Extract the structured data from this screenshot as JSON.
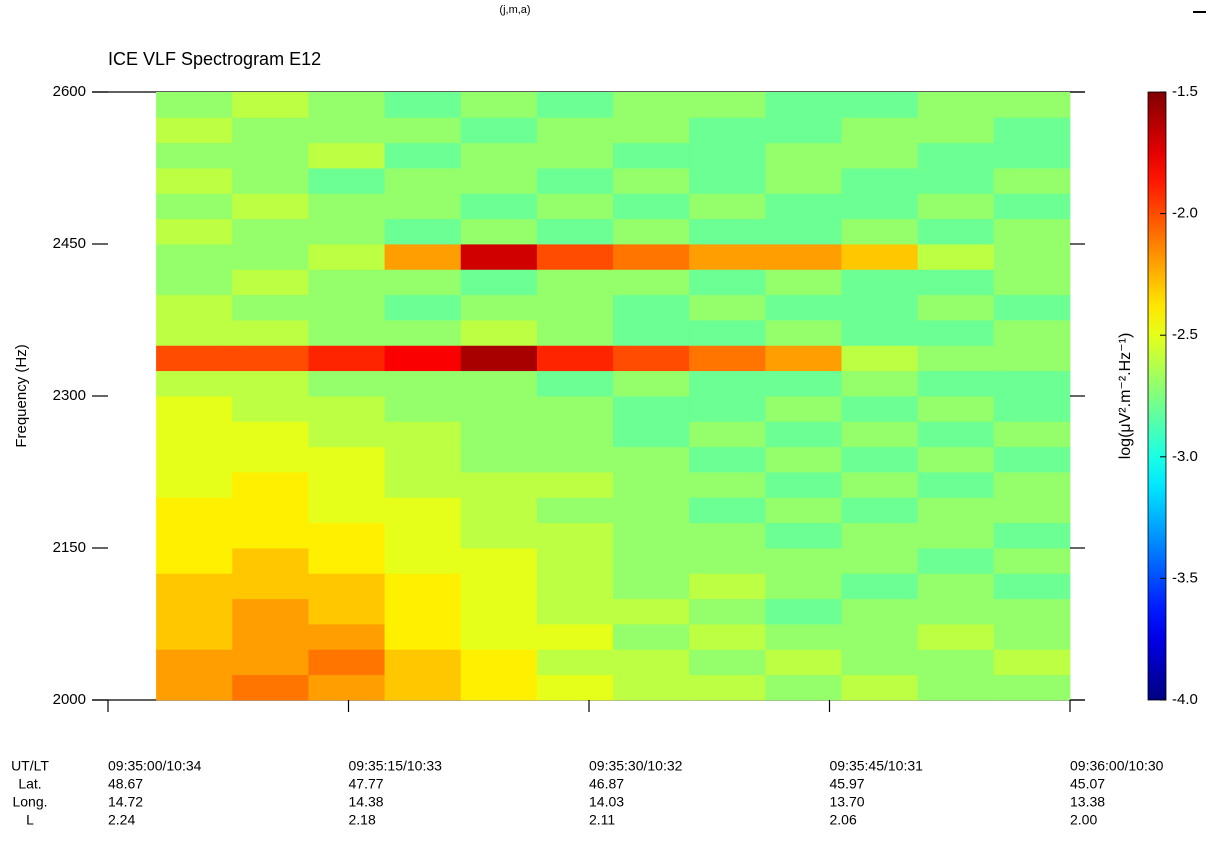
{
  "top_note": "(j,m,a)",
  "chart_data": {
    "type": "spectrogram",
    "title": "ICE VLF Spectrogram E12",
    "y_label": "Frequency (Hz)",
    "colorbar_label": "log(μV².m⁻².Hz⁻¹)",
    "xlim": [
      0,
      60
    ],
    "xticks": [
      0,
      15,
      30,
      45,
      60
    ],
    "ylim": [
      2000,
      2600
    ],
    "yticks": [
      2000,
      2150,
      2300,
      2450,
      2600
    ],
    "zlim": [
      -4,
      -1.5
    ],
    "zticks": [
      {
        "value": -4,
        "label": "-4.0"
      },
      -3.5,
      {
        "value": -3,
        "label": "-3.0"
      },
      -2.5,
      {
        "value": -2,
        "label": "-2.0"
      },
      -1.5
    ],
    "colormap": "jet",
    "xbins": [
      3,
      7.75,
      12.5,
      17.25,
      22,
      26.75,
      31.5,
      36.25,
      41,
      45.75,
      50.5,
      55.25,
      60
    ],
    "ybins": [
      2000,
      2025,
      2050,
      2075,
      2100,
      2125,
      2150,
      2175,
      2200,
      2225,
      2250,
      2275,
      2300,
      2325,
      2350,
      2375,
      2400,
      2425,
      2450,
      2475,
      2500,
      2525,
      2550,
      2575,
      2600
    ],
    "z": [
      [
        -2.2,
        -2.1,
        -2.2,
        -2.3,
        -2.4,
        -2.5,
        -2.6,
        -2.6,
        -2.7,
        -2.6,
        -2.7,
        -2.7
      ],
      [
        -2.2,
        -2.2,
        -2.1,
        -2.3,
        -2.4,
        -2.6,
        -2.6,
        -2.7,
        -2.6,
        -2.7,
        -2.7,
        -2.6
      ],
      [
        -2.3,
        -2.2,
        -2.2,
        -2.4,
        -2.5,
        -2.5,
        -2.7,
        -2.6,
        -2.7,
        -2.7,
        -2.6,
        -2.7
      ],
      [
        -2.3,
        -2.2,
        -2.3,
        -2.4,
        -2.5,
        -2.6,
        -2.6,
        -2.7,
        -2.8,
        -2.7,
        -2.7,
        -2.7
      ],
      [
        -2.3,
        -2.3,
        -2.3,
        -2.4,
        -2.5,
        -2.6,
        -2.7,
        -2.6,
        -2.7,
        -2.8,
        -2.7,
        -2.8
      ],
      [
        -2.4,
        -2.3,
        -2.4,
        -2.5,
        -2.5,
        -2.6,
        -2.7,
        -2.7,
        -2.7,
        -2.7,
        -2.8,
        -2.7
      ],
      [
        -2.4,
        -2.4,
        -2.4,
        -2.5,
        -2.6,
        -2.6,
        -2.7,
        -2.7,
        -2.8,
        -2.7,
        -2.7,
        -2.8
      ],
      [
        -2.4,
        -2.4,
        -2.5,
        -2.5,
        -2.6,
        -2.7,
        -2.7,
        -2.8,
        -2.7,
        -2.8,
        -2.7,
        -2.7
      ],
      [
        -2.5,
        -2.4,
        -2.5,
        -2.6,
        -2.6,
        -2.6,
        -2.7,
        -2.7,
        -2.8,
        -2.7,
        -2.8,
        -2.7
      ],
      [
        -2.5,
        -2.5,
        -2.5,
        -2.6,
        -2.7,
        -2.7,
        -2.7,
        -2.8,
        -2.7,
        -2.8,
        -2.7,
        -2.8
      ],
      [
        -2.5,
        -2.5,
        -2.6,
        -2.6,
        -2.7,
        -2.7,
        -2.8,
        -2.7,
        -2.8,
        -2.7,
        -2.8,
        -2.7
      ],
      [
        -2.5,
        -2.6,
        -2.6,
        -2.7,
        -2.7,
        -2.7,
        -2.8,
        -2.8,
        -2.7,
        -2.8,
        -2.7,
        -2.8
      ],
      [
        -2.6,
        -2.6,
        -2.7,
        -2.7,
        -2.7,
        -2.8,
        -2.7,
        -2.8,
        -2.8,
        -2.7,
        -2.8,
        -2.8
      ],
      [
        -2.0,
        -2.0,
        -1.9,
        -1.8,
        -1.6,
        -1.9,
        -2.0,
        -2.1,
        -2.2,
        -2.6,
        -2.7,
        -2.7
      ],
      [
        -2.6,
        -2.6,
        -2.7,
        -2.7,
        -2.6,
        -2.7,
        -2.8,
        -2.8,
        -2.7,
        -2.8,
        -2.8,
        -2.7
      ],
      [
        -2.6,
        -2.7,
        -2.7,
        -2.8,
        -2.7,
        -2.7,
        -2.8,
        -2.7,
        -2.8,
        -2.8,
        -2.7,
        -2.8
      ],
      [
        -2.7,
        -2.6,
        -2.7,
        -2.7,
        -2.8,
        -2.7,
        -2.7,
        -2.8,
        -2.7,
        -2.8,
        -2.8,
        -2.7
      ],
      [
        -2.7,
        -2.7,
        -2.6,
        -2.2,
        -1.7,
        -2.0,
        -2.1,
        -2.2,
        -2.2,
        -2.3,
        -2.6,
        -2.7
      ],
      [
        -2.6,
        -2.7,
        -2.7,
        -2.8,
        -2.7,
        -2.8,
        -2.7,
        -2.8,
        -2.8,
        -2.7,
        -2.8,
        -2.7
      ],
      [
        -2.7,
        -2.6,
        -2.7,
        -2.7,
        -2.8,
        -2.7,
        -2.8,
        -2.7,
        -2.8,
        -2.8,
        -2.7,
        -2.8
      ],
      [
        -2.6,
        -2.7,
        -2.8,
        -2.7,
        -2.7,
        -2.8,
        -2.7,
        -2.8,
        -2.7,
        -2.8,
        -2.8,
        -2.7
      ],
      [
        -2.7,
        -2.7,
        -2.6,
        -2.8,
        -2.7,
        -2.7,
        -2.8,
        -2.8,
        -2.7,
        -2.7,
        -2.8,
        -2.8
      ],
      [
        -2.6,
        -2.7,
        -2.7,
        -2.7,
        -2.8,
        -2.7,
        -2.7,
        -2.8,
        -2.8,
        -2.7,
        -2.7,
        -2.8
      ],
      [
        -2.7,
        -2.6,
        -2.7,
        -2.8,
        -2.7,
        -2.8,
        -2.7,
        -2.7,
        -2.8,
        -2.8,
        -2.7,
        -2.7
      ]
    ],
    "ephemeris": {
      "row_labels": [
        "UT/LT",
        "Lat.",
        "Long.",
        "L"
      ],
      "columns": [
        [
          "09:35:00/10:34",
          "48.67",
          "14.72",
          "2.24"
        ],
        [
          "09:35:15/10:33",
          "47.77",
          "14.38",
          "2.18"
        ],
        [
          "09:35:30/10:32",
          "46.87",
          "14.03",
          "2.11"
        ],
        [
          "09:35:45/10:31",
          "45.97",
          "13.70",
          "2.06"
        ],
        [
          "09:36:00/10:30",
          "45.07",
          "13.38",
          "2.00"
        ]
      ]
    }
  }
}
